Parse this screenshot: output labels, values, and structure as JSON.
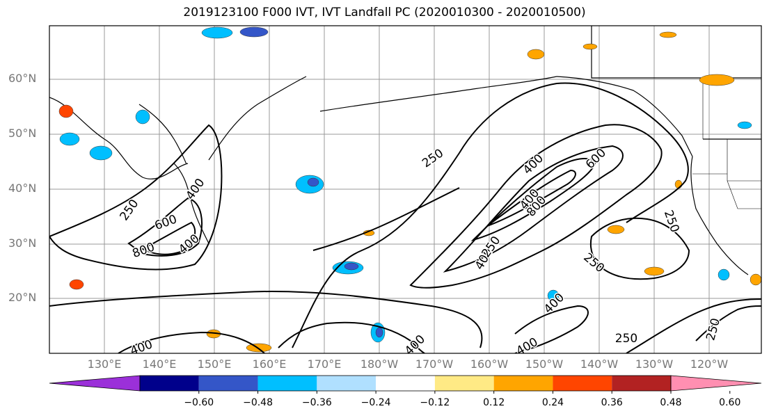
{
  "title": "2019123100 F000 IVT, IVT Landfall PC (2020010300 - 2020010500)",
  "lat_labels": [
    "60°N",
    "50°N",
    "40°N",
    "30°N",
    "20°N"
  ],
  "lon_labels": [
    "130°E",
    "140°E",
    "150°E",
    "160°E",
    "170°E",
    "180°W",
    "170°W",
    "160°W",
    "150°W",
    "140°W",
    "130°W",
    "120°W"
  ],
  "contour_labels": [
    "250",
    "400",
    "600",
    "800",
    "400",
    "250",
    "400",
    "600",
    "800",
    "400",
    "400",
    "250",
    "400",
    "250",
    "250",
    "400",
    "400",
    "250",
    "250",
    "400"
  ],
  "colorbar": {
    "colors": [
      "#9b30d9",
      "#00008b",
      "#3456c8",
      "#00bfff",
      "#b0e0ff",
      "#ffffff",
      "#ffea85",
      "#ffa500",
      "#ff4500",
      "#b22222",
      "#ff8fb1"
    ],
    "ticks": [
      "−0.60",
      "−0.48",
      "−0.36",
      "−0.24",
      "−0.12",
      "0.12",
      "0.24",
      "0.36",
      "0.48",
      "0.60"
    ]
  }
}
